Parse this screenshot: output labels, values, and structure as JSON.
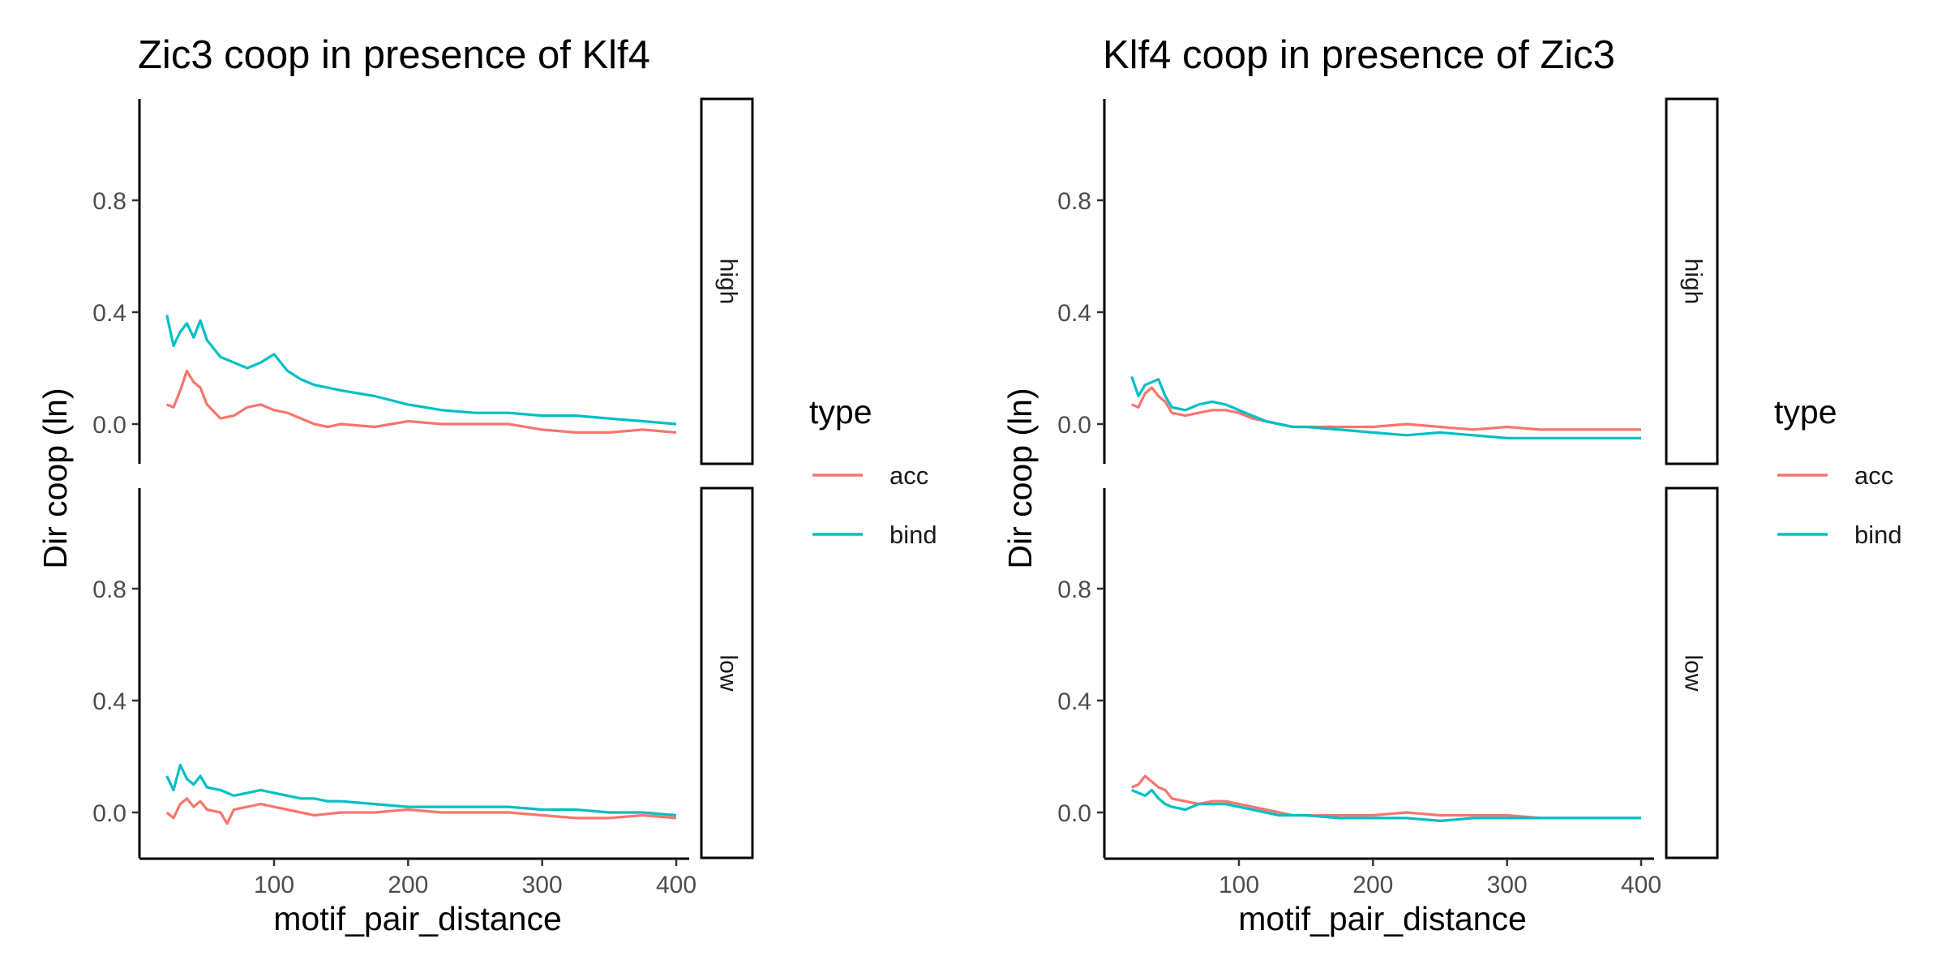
{
  "colors": {
    "acc": "#F8766D",
    "bind": "#00BFC4"
  },
  "chart_data": [
    {
      "type": "line",
      "title": "Zic3 coop in presence of Klf4",
      "xlabel": "motif_pair_distance",
      "ylabel": "Dir coop (ln)",
      "xlim": [
        0,
        400
      ],
      "ylim": [
        -0.16,
        1.15
      ],
      "x_ticks": [
        100,
        200,
        300,
        400
      ],
      "y_ticks": [
        0.0,
        0.4,
        0.8
      ],
      "grid": false,
      "legend": {
        "title": "type",
        "entries": [
          "acc",
          "bind"
        ],
        "position": "right"
      },
      "facets": [
        {
          "label": "high",
          "series": [
            {
              "name": "acc",
              "x": [
                20,
                25,
                30,
                35,
                40,
                45,
                50,
                60,
                70,
                80,
                90,
                100,
                110,
                120,
                130,
                140,
                150,
                175,
                200,
                225,
                250,
                275,
                300,
                325,
                350,
                375,
                400
              ],
              "y": [
                0.07,
                0.06,
                0.12,
                0.19,
                0.15,
                0.13,
                0.07,
                0.02,
                0.03,
                0.06,
                0.07,
                0.05,
                0.04,
                0.02,
                0.0,
                -0.01,
                0.0,
                -0.01,
                0.01,
                0.0,
                0.0,
                0.0,
                -0.02,
                -0.03,
                -0.03,
                -0.02,
                -0.03
              ]
            },
            {
              "name": "bind",
              "x": [
                20,
                25,
                30,
                35,
                40,
                45,
                50,
                60,
                70,
                80,
                90,
                100,
                110,
                120,
                130,
                140,
                150,
                175,
                200,
                225,
                250,
                275,
                300,
                325,
                350,
                375,
                400
              ],
              "y": [
                0.39,
                0.28,
                0.33,
                0.36,
                0.31,
                0.37,
                0.3,
                0.24,
                0.22,
                0.2,
                0.22,
                0.25,
                0.19,
                0.16,
                0.14,
                0.13,
                0.12,
                0.1,
                0.07,
                0.05,
                0.04,
                0.04,
                0.03,
                0.03,
                0.02,
                0.01,
                0.0
              ]
            }
          ]
        },
        {
          "label": "low",
          "series": [
            {
              "name": "acc",
              "x": [
                20,
                25,
                30,
                35,
                40,
                45,
                50,
                60,
                65,
                70,
                80,
                90,
                100,
                110,
                120,
                130,
                150,
                175,
                200,
                225,
                250,
                275,
                300,
                325,
                350,
                375,
                400
              ],
              "y": [
                0.0,
                -0.02,
                0.03,
                0.05,
                0.02,
                0.04,
                0.01,
                0.0,
                -0.04,
                0.01,
                0.02,
                0.03,
                0.02,
                0.01,
                0.0,
                -0.01,
                0.0,
                0.0,
                0.01,
                0.0,
                0.0,
                0.0,
                -0.01,
                -0.02,
                -0.02,
                -0.01,
                -0.02
              ]
            },
            {
              "name": "bind",
              "x": [
                20,
                25,
                30,
                35,
                40,
                45,
                50,
                60,
                70,
                80,
                90,
                100,
                110,
                120,
                130,
                140,
                150,
                175,
                200,
                225,
                250,
                275,
                300,
                325,
                350,
                375,
                400
              ],
              "y": [
                0.13,
                0.08,
                0.17,
                0.12,
                0.1,
                0.13,
                0.09,
                0.08,
                0.06,
                0.07,
                0.08,
                0.07,
                0.06,
                0.05,
                0.05,
                0.04,
                0.04,
                0.03,
                0.02,
                0.02,
                0.02,
                0.02,
                0.01,
                0.01,
                0.0,
                0.0,
                -0.01
              ]
            }
          ]
        }
      ]
    },
    {
      "type": "line",
      "title": "Klf4 coop in presence of Zic3",
      "xlabel": "motif_pair_distance",
      "ylabel": "Dir coop (ln)",
      "xlim": [
        0,
        400
      ],
      "ylim": [
        -0.16,
        1.15
      ],
      "x_ticks": [
        100,
        200,
        300,
        400
      ],
      "y_ticks": [
        0.0,
        0.4,
        0.8
      ],
      "grid": false,
      "legend": {
        "title": "type",
        "entries": [
          "acc",
          "bind"
        ],
        "position": "right"
      },
      "facets": [
        {
          "label": "high",
          "series": [
            {
              "name": "acc",
              "x": [
                20,
                25,
                30,
                35,
                40,
                45,
                50,
                60,
                70,
                80,
                90,
                100,
                110,
                120,
                130,
                140,
                150,
                175,
                200,
                225,
                250,
                275,
                300,
                325,
                350,
                375,
                400
              ],
              "y": [
                0.07,
                0.06,
                0.11,
                0.13,
                0.1,
                0.08,
                0.04,
                0.03,
                0.04,
                0.05,
                0.05,
                0.04,
                0.02,
                0.01,
                0.0,
                -0.01,
                -0.01,
                -0.01,
                -0.01,
                0.0,
                -0.01,
                -0.02,
                -0.01,
                -0.02,
                -0.02,
                -0.02,
                -0.02
              ]
            },
            {
              "name": "bind",
              "x": [
                20,
                25,
                30,
                35,
                40,
                45,
                50,
                60,
                70,
                80,
                90,
                100,
                110,
                120,
                130,
                140,
                150,
                175,
                200,
                225,
                250,
                275,
                300,
                325,
                350,
                375,
                400
              ],
              "y": [
                0.17,
                0.1,
                0.14,
                0.15,
                0.16,
                0.1,
                0.06,
                0.05,
                0.07,
                0.08,
                0.07,
                0.05,
                0.03,
                0.01,
                0.0,
                -0.01,
                -0.01,
                -0.02,
                -0.03,
                -0.04,
                -0.03,
                -0.04,
                -0.05,
                -0.05,
                -0.05,
                -0.05,
                -0.05
              ]
            }
          ]
        },
        {
          "label": "low",
          "series": [
            {
              "name": "acc",
              "x": [
                20,
                25,
                30,
                35,
                40,
                45,
                50,
                60,
                70,
                80,
                90,
                100,
                110,
                120,
                130,
                140,
                150,
                175,
                200,
                225,
                250,
                275,
                300,
                325,
                350,
                375,
                400
              ],
              "y": [
                0.09,
                0.1,
                0.13,
                0.11,
                0.09,
                0.08,
                0.05,
                0.04,
                0.03,
                0.04,
                0.04,
                0.03,
                0.02,
                0.01,
                0.0,
                -0.01,
                -0.01,
                -0.01,
                -0.01,
                0.0,
                -0.01,
                -0.01,
                -0.01,
                -0.02,
                -0.02,
                -0.02,
                -0.02
              ]
            },
            {
              "name": "bind",
              "x": [
                20,
                25,
                30,
                35,
                40,
                45,
                50,
                60,
                70,
                80,
                90,
                100,
                110,
                120,
                130,
                140,
                150,
                175,
                200,
                225,
                250,
                275,
                300,
                325,
                350,
                375,
                400
              ],
              "y": [
                0.08,
                0.07,
                0.06,
                0.08,
                0.05,
                0.03,
                0.02,
                0.01,
                0.03,
                0.03,
                0.03,
                0.02,
                0.01,
                0.0,
                -0.01,
                -0.01,
                -0.01,
                -0.02,
                -0.02,
                -0.02,
                -0.03,
                -0.02,
                -0.02,
                -0.02,
                -0.02,
                -0.02,
                -0.02
              ]
            }
          ]
        }
      ]
    }
  ]
}
